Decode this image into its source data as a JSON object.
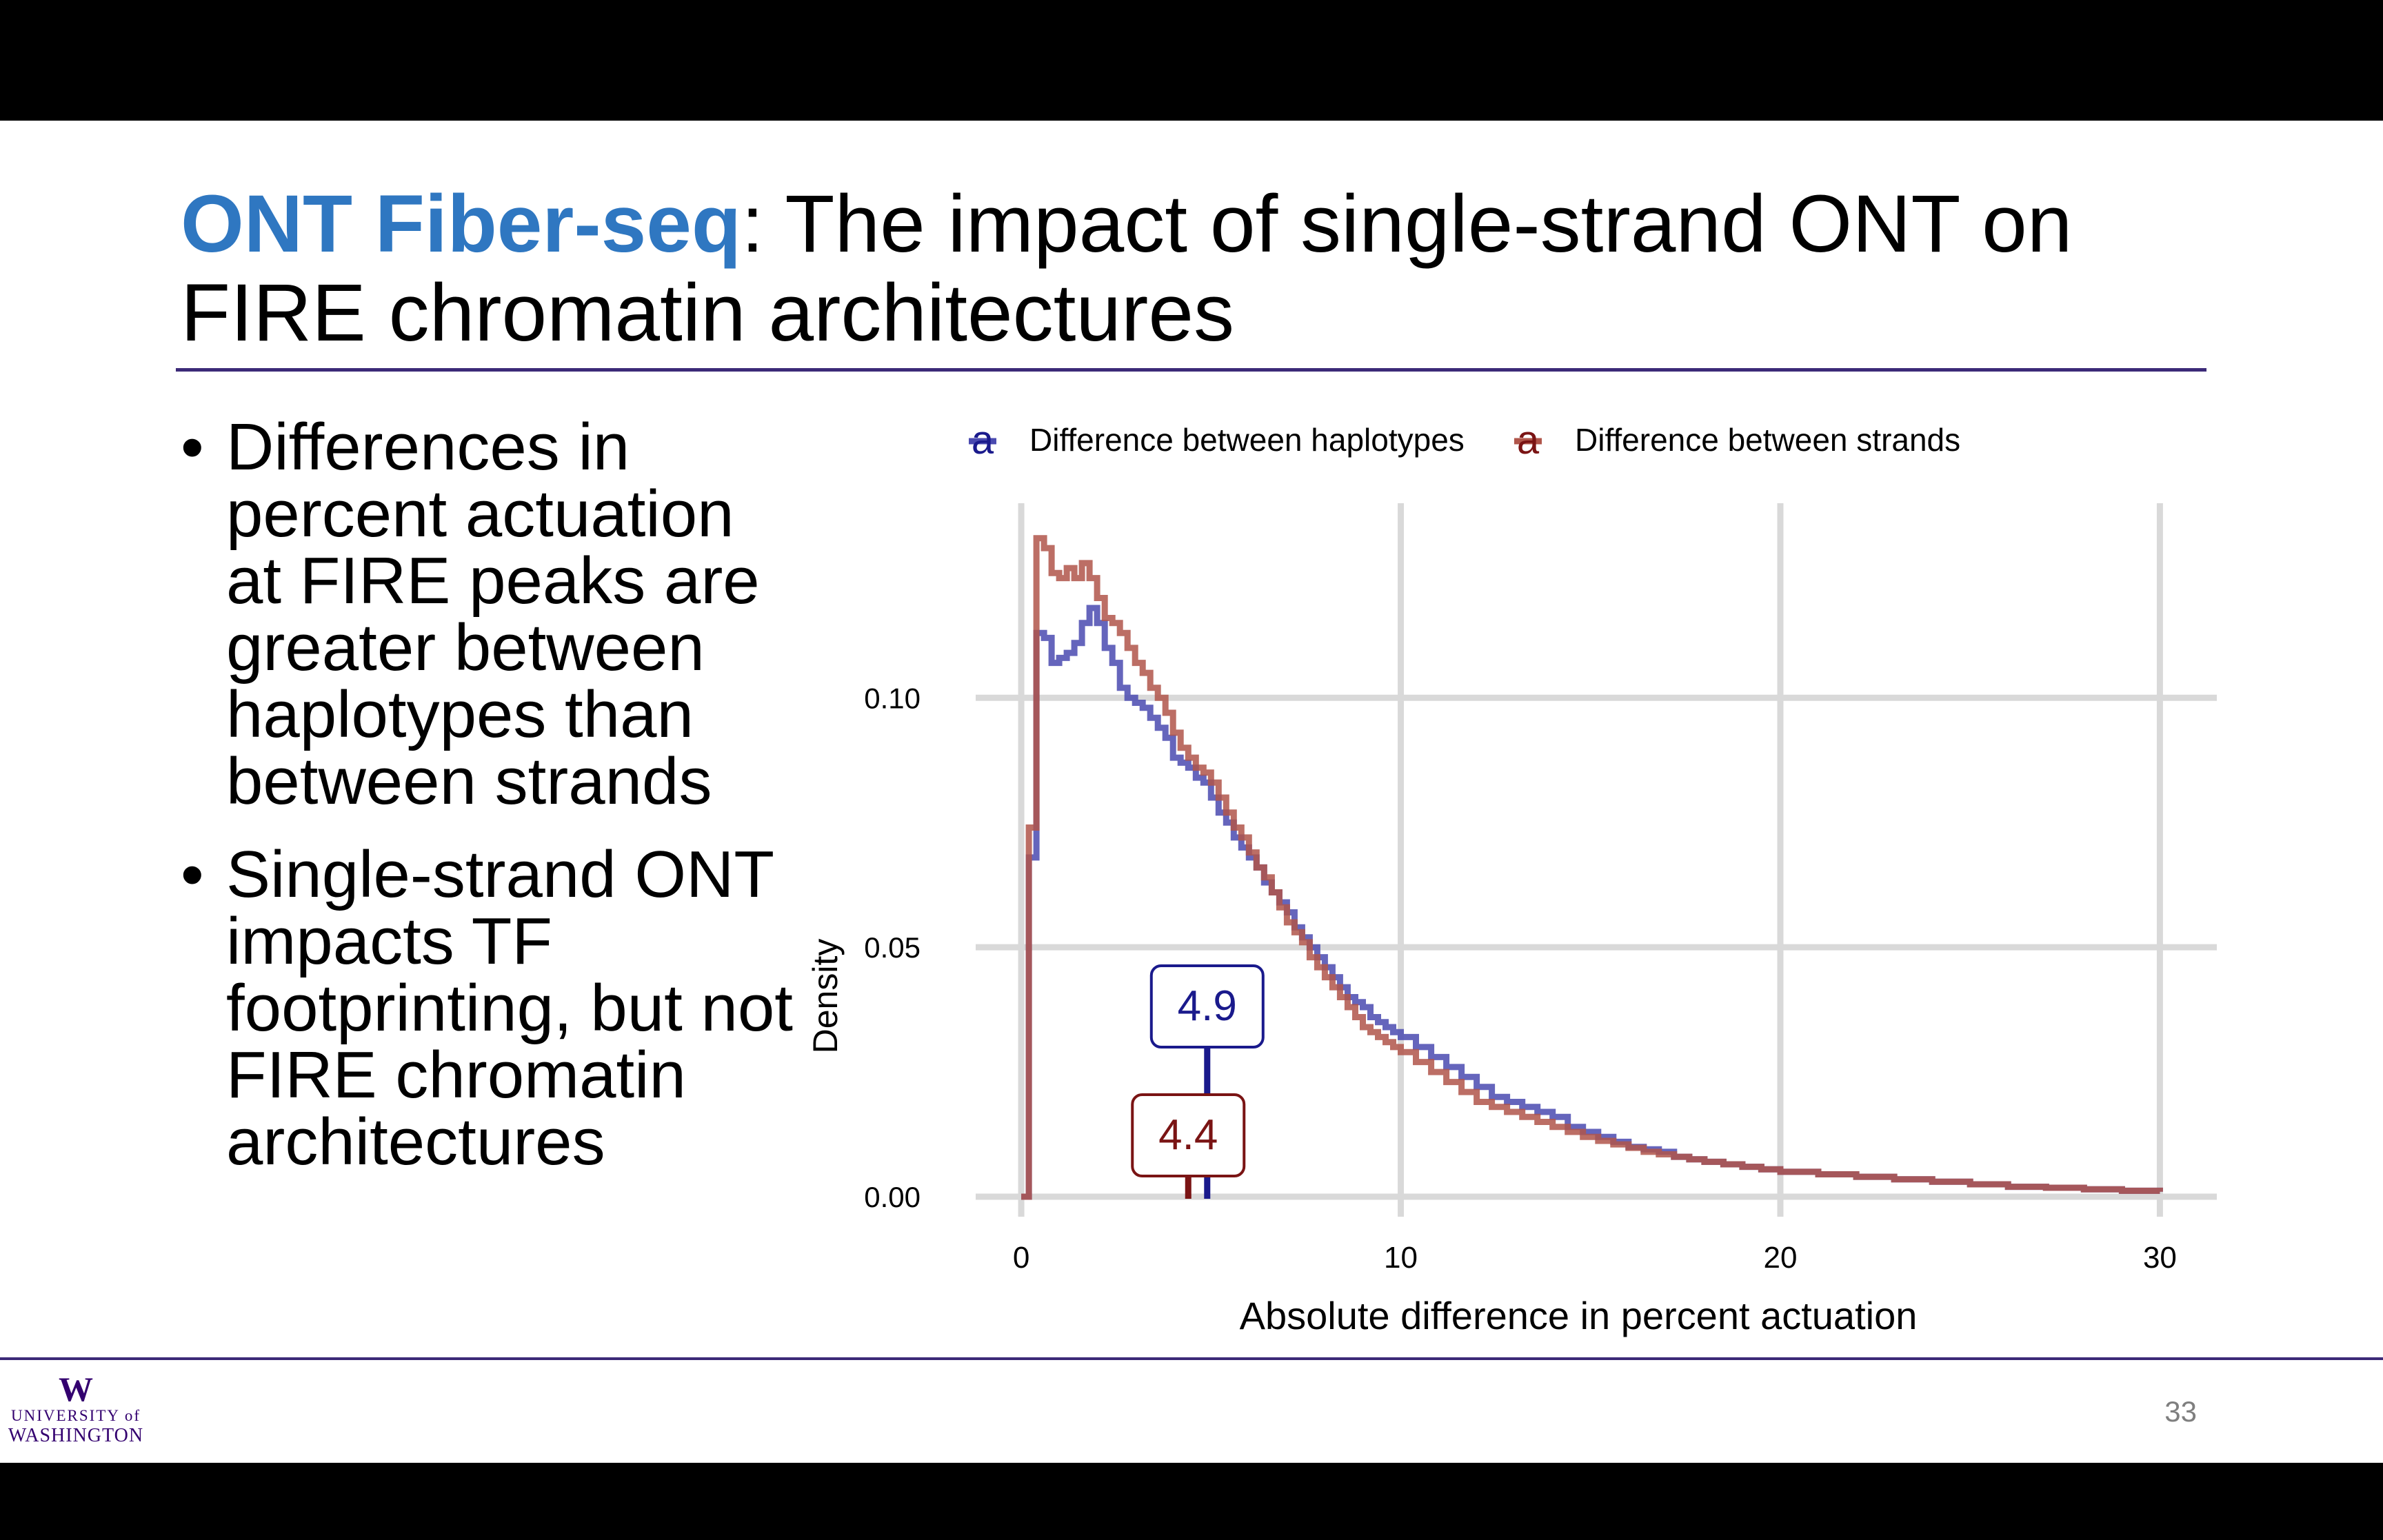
{
  "slide": {
    "title_accent": "ONT Fiber-seq",
    "title_rest": ": The impact of single-strand ONT on FIRE chromatin architectures",
    "bullets": [
      "Differences in percent actuation at FIRE peaks are greater between haplotypes than between strands",
      "Single-strand ONT impacts TF footprinting, but not FIRE chromatin architectures"
    ],
    "page_number": "33",
    "logo": {
      "mark": "W",
      "line1": "UNIVERSITY of",
      "line2": "WASHINGTON"
    }
  },
  "chart_data": {
    "type": "line",
    "style": "step",
    "xlabel": "Absolute difference in percent actuation",
    "ylabel": "Density",
    "xlim": [
      -1.2,
      31.5
    ],
    "ylim": [
      -0.004,
      0.139
    ],
    "x_ticks": [
      "0",
      "10",
      "20",
      "30"
    ],
    "y_ticks": [
      "0.00",
      "0.05",
      "0.10"
    ],
    "grid": true,
    "legend_position": "top",
    "legend_key_glyph": "a",
    "series": [
      {
        "name": "Difference between haplotypes",
        "color": "#4a4ab0",
        "median": 4.9,
        "median_label": "4.9",
        "label_color": "#1a1a8c",
        "x": [
          0,
          0.2,
          0.4,
          0.6,
          0.8,
          1,
          1.2,
          1.4,
          1.6,
          1.8,
          2,
          2.2,
          2.4,
          2.6,
          2.8,
          3,
          3.2,
          3.4,
          3.6,
          3.8,
          4,
          4.2,
          4.4,
          4.6,
          4.8,
          5,
          5.2,
          5.4,
          5.6,
          5.8,
          6,
          6.2,
          6.4,
          6.6,
          6.8,
          7,
          7.2,
          7.4,
          7.6,
          7.8,
          8,
          8.2,
          8.4,
          8.6,
          8.8,
          9,
          9.2,
          9.4,
          9.6,
          9.8,
          10,
          10.4,
          10.8,
          11.2,
          11.6,
          12,
          12.4,
          12.8,
          13.2,
          13.6,
          14,
          14.4,
          14.8,
          15.2,
          15.6,
          16,
          16.4,
          16.8,
          17.2,
          17.6,
          18,
          18.5,
          19,
          19.5,
          20,
          21,
          22,
          23,
          24,
          25,
          26,
          27,
          28,
          29,
          30
        ],
        "y": [
          0,
          0.068,
          0.113,
          0.112,
          0.107,
          0.108,
          0.109,
          0.111,
          0.115,
          0.118,
          0.115,
          0.11,
          0.107,
          0.102,
          0.1,
          0.099,
          0.098,
          0.096,
          0.094,
          0.092,
          0.088,
          0.087,
          0.086,
          0.084,
          0.083,
          0.08,
          0.077,
          0.075,
          0.072,
          0.07,
          0.068,
          0.066,
          0.063,
          0.061,
          0.059,
          0.057,
          0.054,
          0.052,
          0.05,
          0.048,
          0.046,
          0.044,
          0.042,
          0.04,
          0.039,
          0.038,
          0.036,
          0.035,
          0.034,
          0.033,
          0.032,
          0.03,
          0.028,
          0.026,
          0.024,
          0.022,
          0.02,
          0.019,
          0.018,
          0.017,
          0.016,
          0.014,
          0.013,
          0.012,
          0.011,
          0.01,
          0.0095,
          0.009,
          0.008,
          0.0075,
          0.007,
          0.0065,
          0.006,
          0.0055,
          0.005,
          0.0045,
          0.004,
          0.0035,
          0.003,
          0.0025,
          0.002,
          0.0018,
          0.0015,
          0.0012,
          0.001
        ]
      },
      {
        "name": "Difference between strands",
        "color": "#b0554a",
        "median": 4.4,
        "median_label": "4.4",
        "label_color": "#7a1414",
        "x": [
          0,
          0.2,
          0.4,
          0.6,
          0.8,
          1,
          1.2,
          1.4,
          1.6,
          1.8,
          2,
          2.2,
          2.4,
          2.6,
          2.8,
          3,
          3.2,
          3.4,
          3.6,
          3.8,
          4,
          4.2,
          4.4,
          4.6,
          4.8,
          5,
          5.2,
          5.4,
          5.6,
          5.8,
          6,
          6.2,
          6.4,
          6.6,
          6.8,
          7,
          7.2,
          7.4,
          7.6,
          7.8,
          8,
          8.2,
          8.4,
          8.6,
          8.8,
          9,
          9.2,
          9.4,
          9.6,
          9.8,
          10,
          10.4,
          10.8,
          11.2,
          11.6,
          12,
          12.4,
          12.8,
          13.2,
          13.6,
          14,
          14.4,
          14.8,
          15.2,
          15.6,
          16,
          16.4,
          16.8,
          17.2,
          17.6,
          18,
          18.5,
          19,
          19.5,
          20,
          21,
          22,
          23,
          24,
          25,
          26,
          27,
          28,
          29,
          30
        ],
        "y": [
          0,
          0.074,
          0.132,
          0.13,
          0.125,
          0.124,
          0.126,
          0.124,
          0.127,
          0.124,
          0.12,
          0.116,
          0.115,
          0.113,
          0.11,
          0.107,
          0.105,
          0.102,
          0.1,
          0.097,
          0.093,
          0.09,
          0.088,
          0.086,
          0.085,
          0.083,
          0.08,
          0.077,
          0.074,
          0.072,
          0.069,
          0.066,
          0.064,
          0.061,
          0.058,
          0.055,
          0.053,
          0.051,
          0.048,
          0.046,
          0.044,
          0.042,
          0.04,
          0.038,
          0.036,
          0.034,
          0.033,
          0.032,
          0.031,
          0.03,
          0.029,
          0.027,
          0.025,
          0.023,
          0.021,
          0.019,
          0.018,
          0.017,
          0.016,
          0.015,
          0.014,
          0.013,
          0.012,
          0.0112,
          0.0105,
          0.0098,
          0.009,
          0.0085,
          0.008,
          0.0075,
          0.007,
          0.0065,
          0.006,
          0.0055,
          0.005,
          0.0045,
          0.004,
          0.0035,
          0.003,
          0.0025,
          0.002,
          0.0018,
          0.0015,
          0.0012,
          0.001
        ]
      }
    ]
  }
}
